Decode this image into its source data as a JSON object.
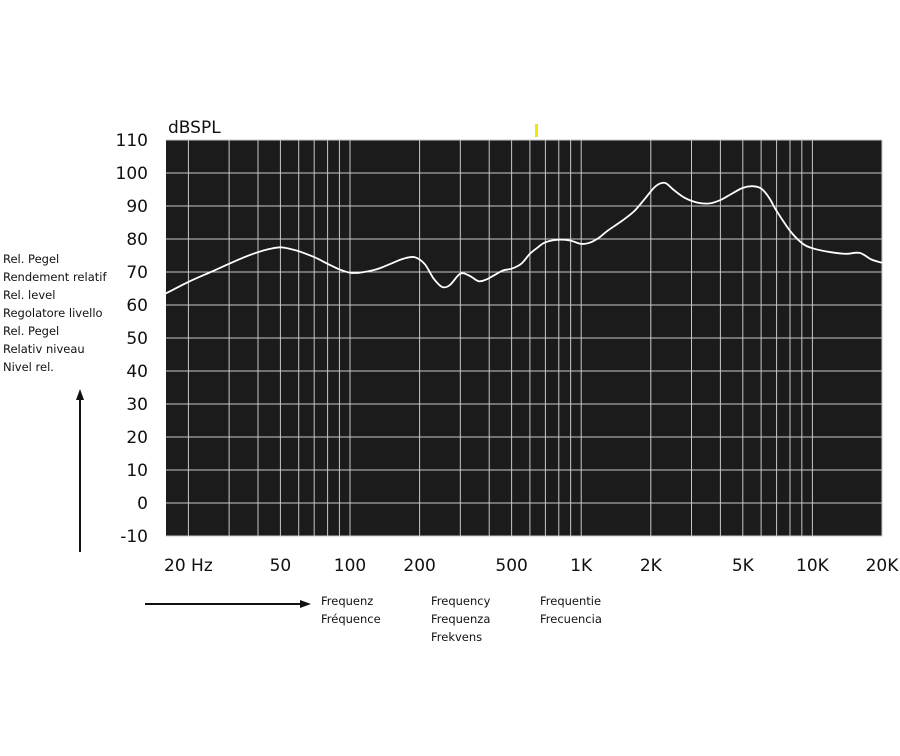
{
  "chart_data": {
    "type": "line",
    "title": "",
    "unit_label": "dBSPL",
    "x_scale": "log",
    "xlim": [
      16,
      20000
    ],
    "ylim": [
      -10,
      110
    ],
    "grid": true,
    "y_ticks": [
      110,
      100,
      90,
      80,
      70,
      60,
      50,
      40,
      30,
      20,
      10,
      0,
      -10
    ],
    "y_tick_labels": [
      "110",
      "100",
      "90",
      "80",
      "70",
      "60",
      "50",
      "40",
      "30",
      "20",
      "10",
      "0",
      "-10"
    ],
    "x_ticks": [
      20,
      50,
      100,
      200,
      500,
      1000,
      2000,
      5000,
      10000,
      20000
    ],
    "x_tick_labels": [
      "20 Hz",
      "50",
      "100",
      "200",
      "500",
      "1K",
      "2K",
      "5K",
      "10K",
      "20K"
    ],
    "ylabel_lines": [
      "Rel. Pegel",
      "Rendement relatif",
      "Rel. level",
      "Regolatore livello",
      "Rel. Pegel",
      "Relativ niveau",
      "Nivel rel."
    ],
    "xlabel_groups": [
      [
        "Frequenz",
        "Fréquence"
      ],
      [
        "Frequency",
        "Frequenza",
        "Frekvens"
      ],
      [
        "Frequentie",
        "Frecuencia"
      ]
    ],
    "series": [
      {
        "x": [
          16,
          20,
          25,
          30,
          35,
          40,
          45,
          50,
          55,
          60,
          70,
          80,
          90,
          100,
          110,
          130,
          150,
          170,
          190,
          210,
          230,
          250,
          270,
          300,
          330,
          360,
          390,
          420,
          460,
          500,
          550,
          600,
          650,
          700,
          800,
          900,
          1000,
          1100,
          1200,
          1300,
          1500,
          1700,
          1900,
          2100,
          2300,
          2500,
          2800,
          3200,
          3600,
          4000,
          4500,
          5000,
          5500,
          6000,
          6500,
          7000,
          8000,
          9000,
          10000,
          12000,
          14000,
          16000,
          18000,
          20000
        ],
        "y": [
          63.5,
          67,
          70,
          72.5,
          74.5,
          76,
          77,
          77.5,
          77,
          76.3,
          74.5,
          72.5,
          70.8,
          69.8,
          69.8,
          70.8,
          72.5,
          74,
          74.5,
          72.5,
          68,
          65.5,
          66,
          69.5,
          68.8,
          67.2,
          67.8,
          69,
          70.5,
          71,
          72.5,
          75.5,
          77.5,
          79,
          79.8,
          79.5,
          78.5,
          79,
          80.5,
          82.5,
          85.5,
          88.5,
          92.5,
          96,
          97,
          95,
          92.5,
          91,
          90.8,
          91.8,
          93.8,
          95.5,
          96,
          95.3,
          92.5,
          88.5,
          82.5,
          78.8,
          77.2,
          76,
          75.5,
          75.8,
          73.8,
          72.8
        ]
      }
    ],
    "line_color": "#ffffff",
    "background_color": "#1c1b1b",
    "grid_color": "#c8c8c8",
    "marker_color": "#f5e600"
  }
}
